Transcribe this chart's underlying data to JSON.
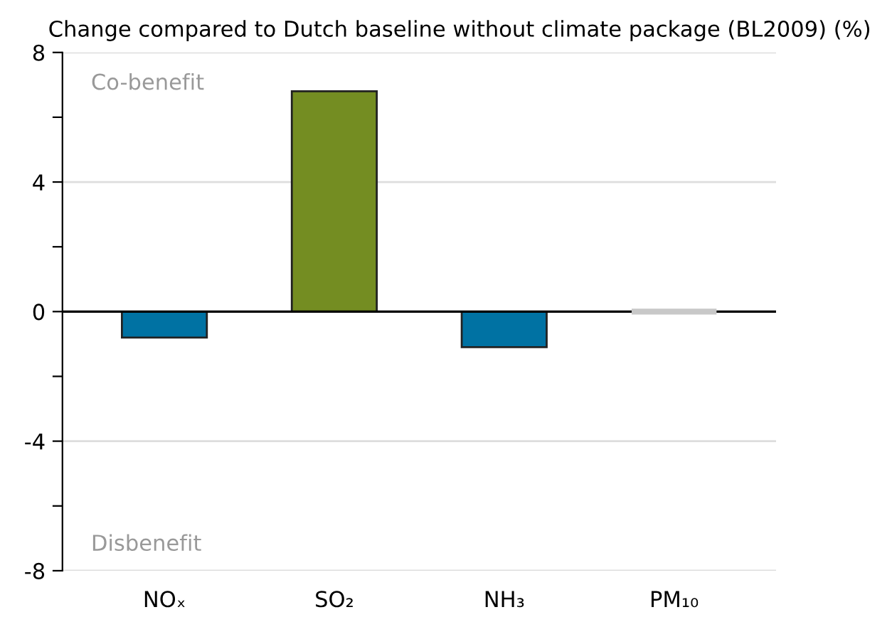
{
  "chart_data": {
    "type": "bar",
    "title": "Change compared to Dutch baseline without climate package (BL2009) (%)",
    "categories": [
      "NOₓ",
      "SO₂",
      "NH₃",
      "PM₁₀"
    ],
    "values": [
      -0.8,
      6.8,
      -1.1,
      0
    ],
    "colors": [
      "#0072a3",
      "#748d22",
      "#0072a3",
      "#c8c8c8"
    ],
    "ylim": [
      -8,
      8
    ],
    "yticks": [
      -8,
      {
        "value": -6,
        "label": null
      },
      -4,
      {
        "value": -2,
        "label": null
      },
      0,
      {
        "value": 2,
        "label": null
      },
      4,
      {
        "value": 6,
        "label": null
      },
      8
    ],
    "grid": "y",
    "annotations": [
      "Co-benefit",
      "Disbenefit"
    ]
  }
}
